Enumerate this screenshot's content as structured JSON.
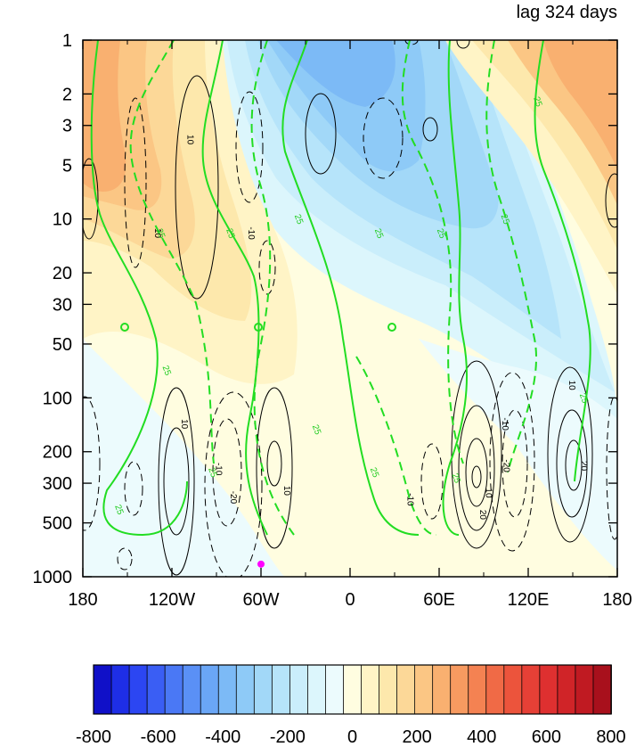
{
  "chart_data": {
    "type": "contour",
    "title_right": "lag 324 days",
    "x_axis": {
      "range": [
        -180,
        180
      ],
      "ticks": [
        -180,
        -120,
        -60,
        0,
        60,
        120,
        180
      ],
      "tick_labels": [
        "180",
        "120W",
        "60W",
        "0",
        "60E",
        "120E",
        "180"
      ]
    },
    "y_axis": {
      "scale": "log",
      "reversed": true,
      "range": [
        1,
        1000
      ],
      "ticks": [
        1,
        2,
        3,
        5,
        10,
        20,
        30,
        50,
        100,
        200,
        300,
        500,
        1000
      ],
      "tick_labels": [
        "1",
        "2",
        "3",
        "5",
        "10",
        "20",
        "30",
        "50",
        "100",
        "200",
        "300",
        "500",
        "1000"
      ]
    },
    "shading": {
      "levels": [
        -800,
        -750,
        -700,
        -650,
        -600,
        -550,
        -500,
        -450,
        -400,
        -350,
        -300,
        -250,
        -200,
        -150,
        -100,
        -50,
        0,
        50,
        100,
        150,
        200,
        250,
        300,
        350,
        400,
        450,
        500,
        550,
        600,
        650,
        700,
        750,
        800
      ],
      "colors": [
        "#1010c8",
        "#1e2ee6",
        "#2c46f2",
        "#3a5ef4",
        "#4a78f5",
        "#5a90f6",
        "#6aa6f6",
        "#7cbaf6",
        "#8ecaf7",
        "#a2d8f8",
        "#b6e4fa",
        "#caeefb",
        "#dcf6fc",
        "#ecfbfd",
        "#fffde0",
        "#fff4c6",
        "#fde8ac",
        "#fcd898",
        "#fbc684",
        "#f9b070",
        "#f79a60",
        "#f48252",
        "#f06a46",
        "#ec543c",
        "#e64036",
        "#de3030",
        "#d02428",
        "#c01a22",
        "#a8101c"
      ],
      "colorbar_labels": [
        "-800",
        "-600",
        "-400",
        "-200",
        "0",
        "200",
        "400",
        "600",
        "800"
      ],
      "colorbar_label_values": [
        -800,
        -600,
        -400,
        -200,
        0,
        200,
        400,
        600,
        800
      ]
    },
    "black_contour_labels": [
      {
        "text": "10",
        "x": -129,
        "p": 12
      },
      {
        "text": "10",
        "x": -107,
        "p": 3.6
      },
      {
        "text": "-10",
        "x": -66,
        "p": 12
      },
      {
        "text": "10",
        "x": -111,
        "p": 140
      },
      {
        "text": "-10",
        "x": -88,
        "p": 250
      },
      {
        "text": "-20",
        "x": -78,
        "p": 360
      },
      {
        "text": "10",
        "x": -42,
        "p": 330
      },
      {
        "text": "-10",
        "x": 41,
        "p": 370
      },
      {
        "text": "10",
        "x": 94,
        "p": 340
      },
      {
        "text": "-10",
        "x": 105,
        "p": 140
      },
      {
        "text": "20",
        "x": 90,
        "p": 450
      },
      {
        "text": "-20",
        "x": 106,
        "p": 240
      },
      {
        "text": "10",
        "x": 150,
        "p": 85
      },
      {
        "text": "20",
        "x": 158,
        "p": 240
      }
    ],
    "green_contour_labels": [
      {
        "text": "25",
        "x": -127,
        "p": 12
      },
      {
        "text": "25",
        "x": -80,
        "p": 12
      },
      {
        "text": "25",
        "x": -34,
        "p": 10
      },
      {
        "text": "25",
        "x": 20,
        "p": 12
      },
      {
        "text": "25",
        "x": 62,
        "p": 12
      },
      {
        "text": "25",
        "x": 105,
        "p": 10
      },
      {
        "text": "25",
        "x": -123,
        "p": 70
      },
      {
        "text": "25",
        "x": -22,
        "p": 150
      },
      {
        "text": "25",
        "x": 17,
        "p": 260
      },
      {
        "text": "25",
        "x": 72,
        "p": 280
      },
      {
        "text": "25",
        "x": -92,
        "p": 260
      },
      {
        "text": "25",
        "x": -155,
        "p": 420
      },
      {
        "text": "25",
        "x": 127,
        "p": 2.2
      },
      {
        "text": "25",
        "x": 158,
        "p": 100
      }
    ],
    "marker": {
      "x": -60,
      "p": 850,
      "color": "#ff00ff"
    }
  }
}
